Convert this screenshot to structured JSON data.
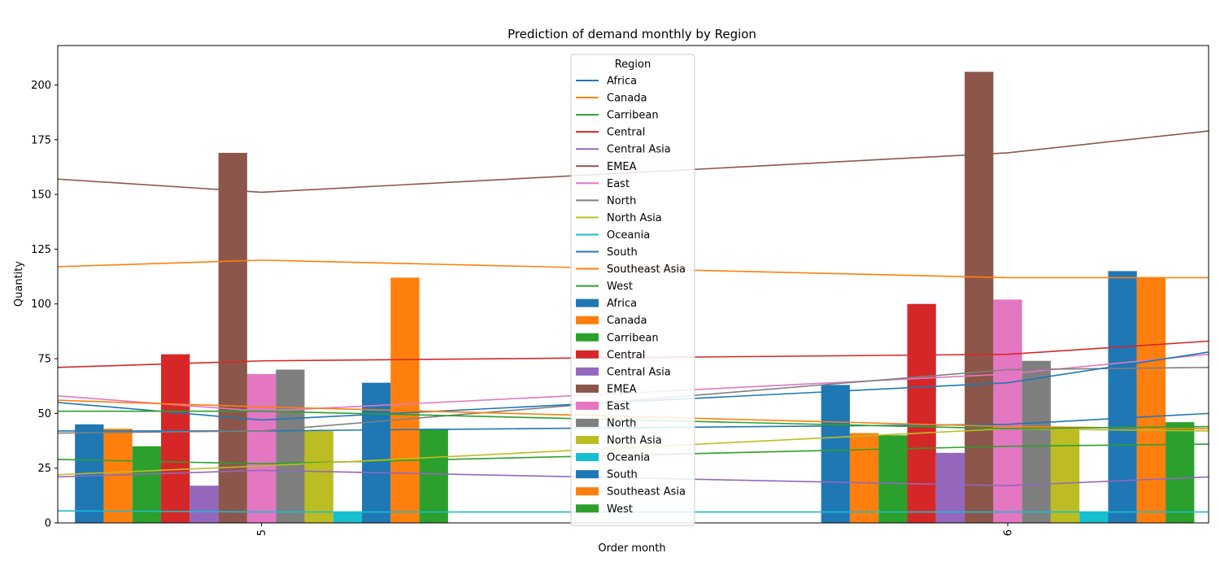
{
  "chart_data": {
    "type": "bar",
    "title": "Prediction of demand monthly by Region",
    "xlabel": "Order month",
    "ylabel": "Quantity",
    "ylim": [
      0,
      218
    ],
    "yticks": [
      0,
      25,
      50,
      75,
      100,
      125,
      150,
      175,
      200
    ],
    "x_ticks": [
      {
        "label": "5",
        "pos": 7
      },
      {
        "label": "6",
        "pos": 20
      }
    ],
    "xlim": [
      3.45,
      23.5
    ],
    "legend": {
      "title": "Region",
      "placement": "top-center"
    },
    "colors": {
      "Africa": "#1f77b4",
      "Canada": "#ff7f0e",
      "Carribean": "#2ca02c",
      "Central": "#d62728",
      "Central Asia": "#9467bd",
      "EMEA": "#8c564b",
      "East": "#e377c2",
      "North": "#7f7f7f",
      "North Asia": "#bcbd22",
      "Oceania": "#17becf",
      "South": "#1f77b4",
      "Southeast Asia": "#ff7f0e",
      "West": "#2ca02c"
    },
    "bar_series": [
      {
        "name": "Africa",
        "values": [
          45,
          63
        ]
      },
      {
        "name": "Canada",
        "values": [
          43,
          41
        ]
      },
      {
        "name": "Carribean",
        "values": [
          35,
          40
        ]
      },
      {
        "name": "Central",
        "values": [
          77,
          100
        ]
      },
      {
        "name": "Central Asia",
        "values": [
          17,
          32
        ]
      },
      {
        "name": "EMEA",
        "values": [
          169,
          206
        ]
      },
      {
        "name": "East",
        "values": [
          68,
          102
        ]
      },
      {
        "name": "North",
        "values": [
          70,
          74
        ]
      },
      {
        "name": "North Asia",
        "values": [
          42,
          43
        ]
      },
      {
        "name": "Oceania",
        "values": [
          5,
          5
        ]
      },
      {
        "name": "South",
        "values": [
          64,
          115
        ]
      },
      {
        "name": "Southeast Asia",
        "values": [
          112,
          112
        ]
      },
      {
        "name": "West",
        "values": [
          43,
          46
        ]
      }
    ],
    "line_series": [
      {
        "name": "Africa",
        "x": [
          3.45,
          7,
          20,
          23.5
        ],
        "y": [
          42,
          42,
          45,
          50
        ]
      },
      {
        "name": "Canada",
        "x": [
          3.45,
          7,
          20,
          23.5
        ],
        "y": [
          117,
          120,
          112,
          112
        ]
      },
      {
        "name": "Carribean",
        "x": [
          3.45,
          7,
          20,
          23.5
        ],
        "y": [
          29,
          27,
          35,
          36
        ]
      },
      {
        "name": "Central",
        "x": [
          3.45,
          7,
          20,
          23.5
        ],
        "y": [
          71,
          74,
          77,
          83
        ]
      },
      {
        "name": "Central Asia",
        "x": [
          3.45,
          7,
          20,
          23.5
        ],
        "y": [
          21,
          24,
          17,
          21
        ]
      },
      {
        "name": "EMEA",
        "x": [
          3.45,
          7,
          20,
          23.5
        ],
        "y": [
          157,
          151,
          169,
          179
        ]
      },
      {
        "name": "East",
        "x": [
          3.45,
          7,
          20,
          23.5
        ],
        "y": [
          58,
          51,
          68,
          77
        ]
      },
      {
        "name": "North",
        "x": [
          3.45,
          7,
          20,
          23.5
        ],
        "y": [
          41,
          42,
          70,
          71
        ]
      },
      {
        "name": "North Asia",
        "x": [
          3.45,
          7,
          20,
          23.5
        ],
        "y": [
          22,
          26,
          43,
          42
        ]
      },
      {
        "name": "Oceania",
        "x": [
          3.45,
          7,
          20,
          23.5
        ],
        "y": [
          5.5,
          5,
          5,
          5
        ]
      },
      {
        "name": "South",
        "x": [
          3.45,
          7,
          20,
          23.5
        ],
        "y": [
          55,
          47,
          64,
          78
        ]
      },
      {
        "name": "Southeast Asia",
        "x": [
          3.45,
          7,
          20,
          23.5
        ],
        "y": [
          56,
          53,
          44,
          43
        ]
      },
      {
        "name": "West",
        "x": [
          3.45,
          7,
          20,
          23.5
        ],
        "y": [
          51,
          51,
          43,
          44
        ]
      }
    ]
  }
}
